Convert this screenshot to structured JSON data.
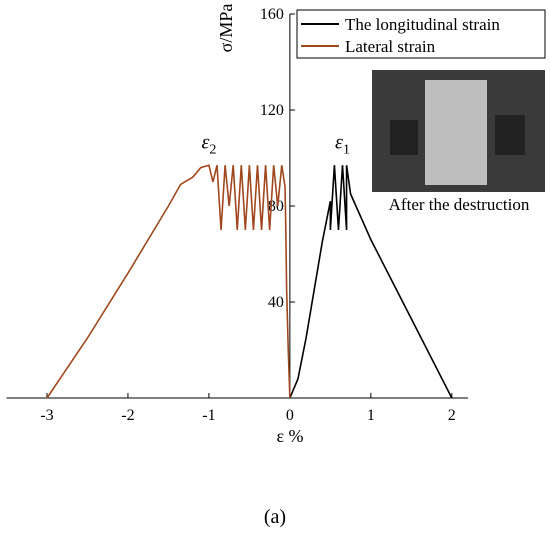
{
  "chart_data": {
    "type": "line",
    "x_label": "ε %",
    "y_label": "σ/MPa",
    "caption": "(a)",
    "inset_caption": "After the destruction",
    "xlim": [
      -3.5,
      2.2
    ],
    "ylim": [
      0,
      160
    ],
    "xticks": [
      -3,
      -2,
      -1,
      0,
      1,
      2
    ],
    "yticks": [
      40,
      80,
      120,
      160
    ],
    "legend": "top-right",
    "annotations": [
      {
        "text": "ε",
        "subscript": "2",
        "x": -1.0,
        "y": 104
      },
      {
        "text": "ε",
        "subscript": "1",
        "x": 0.65,
        "y": 104
      }
    ],
    "series": [
      {
        "name": "The longitudinal strain",
        "color": "#000000",
        "x": [
          0,
          0.1,
          0.2,
          0.3,
          0.4,
          0.5,
          0.5,
          0.55,
          0.6,
          0.65,
          0.7,
          0.7,
          0.75,
          1.0,
          1.5,
          2.0
        ],
        "values": [
          0,
          8,
          25,
          45,
          65,
          82,
          70,
          97,
          70,
          97,
          70,
          97,
          85,
          66,
          33,
          0
        ]
      },
      {
        "name": "Lateral strain",
        "color": "#a0471e",
        "x": [
          0,
          -0.02,
          -0.04,
          -0.05,
          -0.06,
          -0.1,
          -0.15,
          -0.2,
          -0.25,
          -0.3,
          -0.35,
          -0.4,
          -0.45,
          -0.5,
          -0.55,
          -0.6,
          -0.65,
          -0.7,
          -0.75,
          -0.8,
          -0.85,
          -0.9,
          -0.95,
          -1.0,
          -1.1,
          -1.2,
          -1.35,
          -1.5,
          -2.0,
          -2.5,
          -3.0
        ],
        "values": [
          0,
          20,
          45,
          70,
          88,
          97,
          80,
          97,
          70,
          97,
          70,
          97,
          70,
          97,
          70,
          97,
          70,
          97,
          80,
          97,
          70,
          97,
          90,
          97,
          96,
          92,
          89,
          80,
          52,
          25,
          0
        ]
      }
    ]
  }
}
